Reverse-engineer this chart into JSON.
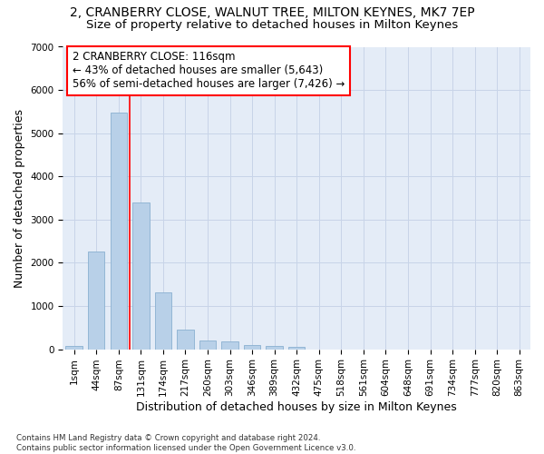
{
  "title_line1": "2, CRANBERRY CLOSE, WALNUT TREE, MILTON KEYNES, MK7 7EP",
  "title_line2": "Size of property relative to detached houses in Milton Keynes",
  "xlabel": "Distribution of detached houses by size in Milton Keynes",
  "ylabel": "Number of detached properties",
  "bin_labels": [
    "1sqm",
    "44sqm",
    "87sqm",
    "131sqm",
    "174sqm",
    "217sqm",
    "260sqm",
    "303sqm",
    "346sqm",
    "389sqm",
    "432sqm",
    "475sqm",
    "518sqm",
    "561sqm",
    "604sqm",
    "648sqm",
    "691sqm",
    "734sqm",
    "777sqm",
    "820sqm",
    "863sqm"
  ],
  "bar_values": [
    75,
    2270,
    5480,
    3390,
    1320,
    460,
    205,
    185,
    105,
    85,
    55,
    0,
    0,
    0,
    0,
    0,
    0,
    0,
    0,
    0,
    0
  ],
  "bar_color": "#b8d0e8",
  "bar_edge_color": "#8ab0d0",
  "vline_x": 2.5,
  "vline_color": "red",
  "annotation_text": "2 CRANBERRY CLOSE: 116sqm\n← 43% of detached houses are smaller (5,643)\n56% of semi-detached houses are larger (7,426) →",
  "annotation_box_color": "red",
  "annotation_box_facecolor": "white",
  "ylim": [
    0,
    7000
  ],
  "yticks": [
    0,
    1000,
    2000,
    3000,
    4000,
    5000,
    6000,
    7000
  ],
  "grid_color": "#c8d4e8",
  "bg_color": "#e4ecf7",
  "footnote": "Contains HM Land Registry data © Crown copyright and database right 2024.\nContains public sector information licensed under the Open Government Licence v3.0.",
  "title_fontsize": 10,
  "subtitle_fontsize": 9.5,
  "axis_label_fontsize": 9,
  "tick_fontsize": 7.5,
  "annotation_fontsize": 8.5
}
